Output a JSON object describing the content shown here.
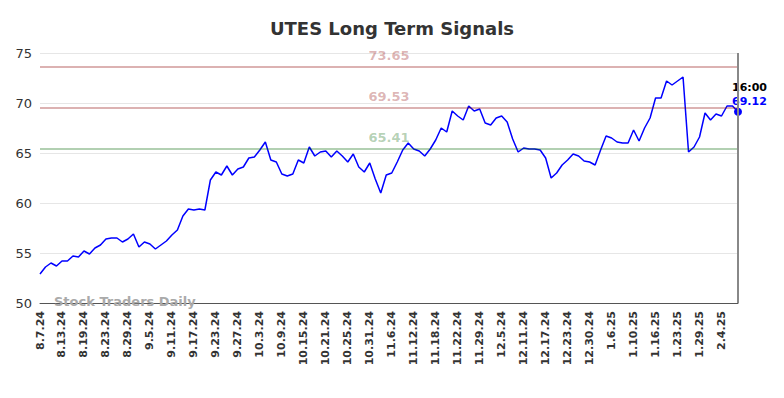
{
  "chart_data": {
    "type": "line",
    "title": "UTES Long Term Signals",
    "watermark": "Stock Traders Daily",
    "color": "#0000ff",
    "grid": true,
    "categories": [
      "8.7.24",
      null,
      null,
      null,
      "8.13.24",
      null,
      null,
      null,
      "8.19.24",
      null,
      null,
      null,
      "8.23.24",
      null,
      null,
      null,
      "8.29.24",
      null,
      null,
      null,
      "9.5.24",
      null,
      null,
      null,
      "9.11.24",
      null,
      null,
      null,
      "9.17.24",
      null,
      null,
      null,
      "9.23.24",
      null,
      null,
      null,
      "9.27.24",
      null,
      null,
      null,
      "10.3.24",
      null,
      null,
      null,
      "10.9.24",
      null,
      null,
      null,
      "10.15.24",
      null,
      null,
      null,
      "10.21.24",
      null,
      null,
      null,
      "10.25.24",
      null,
      null,
      null,
      "10.31.24",
      null,
      null,
      null,
      "11.6.24",
      null,
      null,
      null,
      "11.12.24",
      null,
      null,
      null,
      "11.18.24",
      null,
      null,
      null,
      "11.22.24",
      null,
      null,
      null,
      "11.29.24",
      null,
      null,
      null,
      "12.5.24",
      null,
      null,
      null,
      "12.11.24",
      null,
      null,
      null,
      "12.17.24",
      null,
      null,
      null,
      "12.23.24",
      null,
      null,
      null,
      "12.30.24",
      null,
      null,
      null,
      "1.6.25",
      null,
      null,
      null,
      "1.10.25",
      null,
      null,
      null,
      "1.16.25",
      null,
      null,
      null,
      "1.23.25",
      null,
      null,
      null,
      "1.29.25",
      null,
      null,
      null,
      "2.4.25",
      null,
      null,
      null
    ],
    "values": [
      52.9,
      53.6,
      54.0,
      53.7,
      54.2,
      54.2,
      54.7,
      54.6,
      55.2,
      54.9,
      55.5,
      55.8,
      56.4,
      56.5,
      56.5,
      56.1,
      56.4,
      56.9,
      55.6,
      56.1,
      55.9,
      55.4,
      55.8,
      56.2,
      56.8,
      57.3,
      58.7,
      59.4,
      59.3,
      59.4,
      59.3,
      62.3,
      63.1,
      62.8,
      63.7,
      62.8,
      63.4,
      63.6,
      64.5,
      64.6,
      65.3,
      66.1,
      64.3,
      64.1,
      62.9,
      62.7,
      62.9,
      64.3,
      64.0,
      65.6,
      64.7,
      65.1,
      65.2,
      64.6,
      65.2,
      64.7,
      64.1,
      64.9,
      63.6,
      63.1,
      64.0,
      62.4,
      61.0,
      62.8,
      63.0,
      64.1,
      65.3,
      66.0,
      65.4,
      65.2,
      64.7,
      65.4,
      66.3,
      67.5,
      67.1,
      69.2,
      68.7,
      68.3,
      69.7,
      69.2,
      69.4,
      68.0,
      67.8,
      68.5,
      68.7,
      68.1,
      66.4,
      65.1,
      65.5,
      65.4,
      65.4,
      65.3,
      64.5,
      62.5,
      63.0,
      63.8,
      64.3,
      64.9,
      64.7,
      64.2,
      64.1,
      63.8,
      65.3,
      66.7,
      66.5,
      66.1,
      66.0,
      66.0,
      67.3,
      66.2,
      67.5,
      68.5,
      70.5,
      70.5,
      72.2,
      71.8,
      72.2,
      72.6,
      65.1,
      65.6,
      66.6,
      69.0,
      68.3,
      68.9,
      68.7,
      69.7,
      69.7,
      69.12
    ],
    "ylim": [
      50,
      75
    ],
    "yticks": [
      50,
      55,
      60,
      65,
      70,
      75
    ],
    "annotations": [
      {
        "value": 73.65,
        "label": "73.65",
        "color": "#8b0000"
      },
      {
        "value": 69.53,
        "label": "69.53",
        "color": "#8b0000"
      },
      {
        "value": 65.41,
        "label": "65.41",
        "color": "#006400"
      }
    ],
    "end_time_label": "16:00"
  }
}
